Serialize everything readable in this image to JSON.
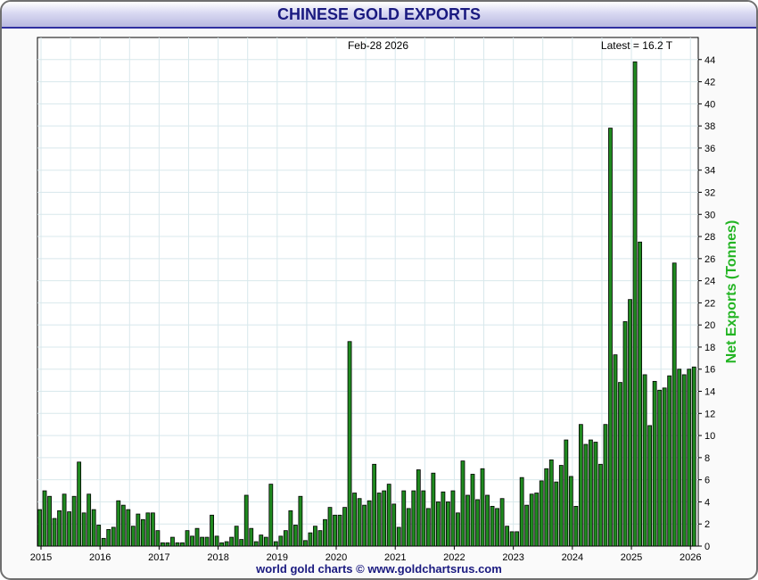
{
  "page": {
    "title": "CHINESE GOLD EXPORTS",
    "footer": "world gold charts © www.goldchartsrus.com"
  },
  "chart_data": {
    "type": "bar",
    "title": "CHINESE GOLD EXPORTS",
    "ylabel": "Net Exports (Tonnes)",
    "xlabel": "",
    "ylim": [
      0,
      46
    ],
    "grid": true,
    "annotation_date": "Feb-28  2026",
    "annotation_latest": "Latest = 16.2 T",
    "x_ticks": [
      "2015",
      "2016",
      "2017",
      "2018",
      "2019",
      "2020",
      "2021",
      "2022",
      "2023",
      "2024",
      "2025",
      "2026"
    ],
    "y_ticks": [
      0,
      2,
      4,
      6,
      8,
      10,
      12,
      14,
      16,
      18,
      20,
      22,
      24,
      26,
      28,
      30,
      32,
      34,
      36,
      38,
      40,
      42,
      44
    ],
    "bar_color": "#1f8a1f",
    "start_period": "2015-01",
    "values": [
      3.3,
      5.0,
      4.5,
      2.5,
      3.2,
      4.7,
      3.1,
      4.5,
      7.6,
      3.0,
      4.7,
      3.3,
      1.9,
      0.7,
      1.5,
      1.7,
      4.1,
      3.7,
      3.3,
      1.8,
      2.9,
      2.4,
      3.0,
      3.0,
      1.4,
      0.3,
      0.3,
      0.8,
      0.3,
      0.3,
      1.4,
      0.9,
      1.6,
      0.8,
      0.8,
      2.8,
      0.9,
      0.3,
      0.4,
      0.8,
      1.8,
      0.6,
      4.6,
      1.6,
      0.4,
      1.0,
      0.8,
      5.6,
      0.4,
      0.9,
      1.4,
      3.2,
      1.9,
      4.5,
      0.5,
      1.2,
      1.8,
      1.4,
      2.4,
      3.5,
      2.8,
      2.8,
      3.5,
      18.5,
      4.8,
      4.3,
      3.7,
      4.1,
      7.4,
      4.8,
      5.0,
      5.6,
      3.8,
      1.7,
      5.0,
      3.4,
      5.0,
      6.9,
      5.0,
      3.4,
      6.6,
      4.0,
      4.9,
      4.0,
      5.0,
      3.0,
      7.7,
      4.6,
      6.5,
      4.2,
      7.0,
      4.6,
      3.6,
      3.4,
      4.3,
      1.8,
      1.3,
      1.3,
      6.2,
      3.7,
      4.7,
      4.8,
      5.9,
      7.0,
      7.8,
      5.8,
      7.3,
      9.6,
      6.3,
      3.6,
      11.0,
      9.2,
      9.6,
      9.4,
      7.4,
      11.0,
      37.8,
      17.3,
      14.8,
      20.3,
      22.3,
      43.8,
      27.5,
      15.5,
      10.9,
      14.9,
      14.1,
      14.3,
      15.4,
      25.6,
      16.0,
      15.5,
      16.0,
      16.2
    ]
  }
}
